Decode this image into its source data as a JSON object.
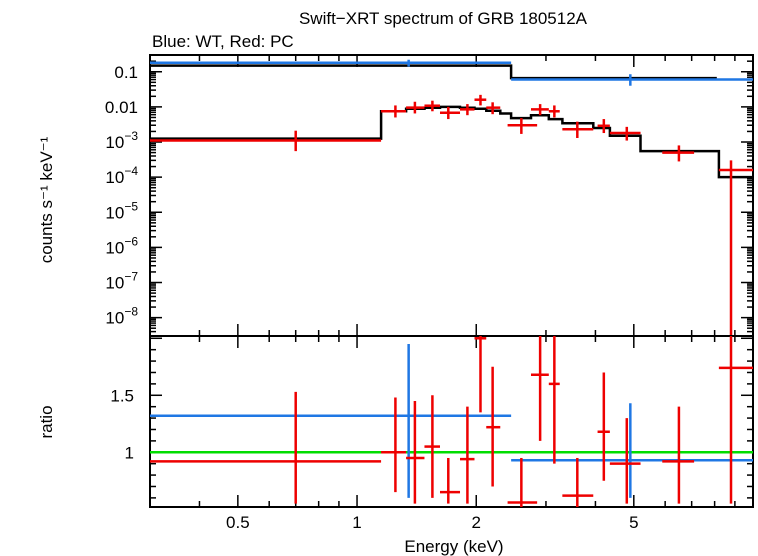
{
  "title": "Swift−XRT spectrum of GRB 180512A",
  "subtitle": "Blue: WT, Red: PC",
  "xlabel": "Energy (keV)",
  "colors": {
    "wt": "#1f77e4",
    "pc": "#ee0000",
    "model": "#000000",
    "unity": "#00dd00",
    "axes": "#000000"
  },
  "chart_data": [
    {
      "type": "scatter",
      "panel": "spectrum",
      "ylabel": "counts s⁻¹ keV⁻¹",
      "xscale": "log",
      "yscale": "log",
      "xlim": [
        0.3,
        10
      ],
      "ylim": [
        3e-09,
        0.3
      ],
      "x_ticks": [
        0.5,
        1,
        2,
        5
      ],
      "y_ticks": [
        {
          "v": 1e-08,
          "base": "10",
          "exp": "−8"
        },
        {
          "v": 1e-07,
          "base": "10",
          "exp": "−7"
        },
        {
          "v": 1e-06,
          "base": "10",
          "exp": "−6"
        },
        {
          "v": 1e-05,
          "base": "10",
          "exp": "−5"
        },
        {
          "v": 0.0001,
          "base": "10",
          "exp": "−4"
        },
        {
          "v": 0.001,
          "base": "10",
          "exp": "−3"
        },
        {
          "v": 0.01,
          "base": "0.01",
          "exp": ""
        },
        {
          "v": 0.1,
          "base": "0.1",
          "exp": ""
        }
      ],
      "series": [
        {
          "key": "wt",
          "points": [
            {
              "x": 1.35,
              "xl": 0.3,
              "xh": 2.45,
              "y": 0.18,
              "yl": 0.14,
              "yh": 0.22
            },
            {
              "x": 4.9,
              "xl": 2.45,
              "xh": 10,
              "y": 0.06,
              "yl": 0.04,
              "yh": 0.085
            }
          ]
        },
        {
          "key": "pc",
          "points": [
            {
              "x": 0.7,
              "xl": 0.3,
              "xh": 1.15,
              "y": 0.0011,
              "yl": 0.00055,
              "yh": 0.0021
            },
            {
              "x": 1.25,
              "xl": 1.15,
              "xh": 1.33,
              "y": 0.0075,
              "yl": 0.005,
              "yh": 0.011
            },
            {
              "x": 1.4,
              "xl": 1.33,
              "xh": 1.48,
              "y": 0.0095,
              "yl": 0.0065,
              "yh": 0.014
            },
            {
              "x": 1.55,
              "xl": 1.48,
              "xh": 1.62,
              "y": 0.0108,
              "yl": 0.0075,
              "yh": 0.015
            },
            {
              "x": 1.7,
              "xl": 1.62,
              "xh": 1.82,
              "y": 0.0068,
              "yl": 0.0045,
              "yh": 0.01
            },
            {
              "x": 1.9,
              "xl": 1.82,
              "xh": 1.98,
              "y": 0.0085,
              "yl": 0.0058,
              "yh": 0.012
            },
            {
              "x": 2.05,
              "xl": 1.98,
              "xh": 2.12,
              "y": 0.016,
              "yl": 0.011,
              "yh": 0.022
            },
            {
              "x": 2.2,
              "xl": 2.12,
              "xh": 2.3,
              "y": 0.0095,
              "yl": 0.0062,
              "yh": 0.0135
            },
            {
              "x": 2.6,
              "xl": 2.4,
              "xh": 2.85,
              "y": 0.003,
              "yl": 0.0017,
              "yh": 0.0048
            },
            {
              "x": 2.9,
              "xl": 2.75,
              "xh": 3.05,
              "y": 0.0085,
              "yl": 0.0058,
              "yh": 0.012
            },
            {
              "x": 3.15,
              "xl": 3.05,
              "xh": 3.25,
              "y": 0.0075,
              "yl": 0.005,
              "yh": 0.011
            },
            {
              "x": 3.6,
              "xl": 3.3,
              "xh": 3.95,
              "y": 0.0023,
              "yl": 0.0013,
              "yh": 0.0038
            },
            {
              "x": 4.2,
              "xl": 4.05,
              "xh": 4.35,
              "y": 0.0029,
              "yl": 0.0018,
              "yh": 0.0045
            },
            {
              "x": 4.8,
              "xl": 4.35,
              "xh": 5.2,
              "y": 0.0018,
              "yl": 0.0011,
              "yh": 0.0027
            },
            {
              "x": 6.5,
              "xl": 5.9,
              "xh": 7.1,
              "y": 0.0005,
              "yl": 0.00028,
              "yh": 0.0008
            },
            {
              "x": 8.8,
              "xl": 8.2,
              "xh": 10,
              "y": 0.00016,
              "yl": 3e-09,
              "yh": 0.0003
            }
          ]
        }
      ],
      "models": [
        {
          "key": "model",
          "steps": [
            {
              "x0": 0.3,
              "x1": 2.45,
              "y": 0.15
            },
            {
              "x0": 2.45,
              "x1": 8.1,
              "y": 0.066
            }
          ]
        },
        {
          "key": "model",
          "steps": [
            {
              "x0": 0.3,
              "x1": 1.15,
              "y": 0.00125
            },
            {
              "x0": 1.15,
              "x1": 1.33,
              "y": 0.0075
            },
            {
              "x0": 1.33,
              "x1": 1.48,
              "y": 0.0088
            },
            {
              "x0": 1.48,
              "x1": 1.62,
              "y": 0.0095
            },
            {
              "x0": 1.62,
              "x1": 1.82,
              "y": 0.01
            },
            {
              "x0": 1.82,
              "x1": 1.98,
              "y": 0.0095
            },
            {
              "x0": 1.98,
              "x1": 2.12,
              "y": 0.0088
            },
            {
              "x0": 2.12,
              "x1": 2.3,
              "y": 0.0078
            },
            {
              "x0": 2.3,
              "x1": 2.45,
              "y": 0.0065
            },
            {
              "x0": 2.45,
              "x1": 2.75,
              "y": 0.0048
            },
            {
              "x0": 2.75,
              "x1": 3.05,
              "y": 0.0058
            },
            {
              "x0": 3.05,
              "x1": 3.3,
              "y": 0.0045
            },
            {
              "x0": 3.3,
              "x1": 3.95,
              "y": 0.0034
            },
            {
              "x0": 3.95,
              "x1": 4.35,
              "y": 0.0025
            },
            {
              "x0": 4.35,
              "x1": 5.2,
              "y": 0.0015
            },
            {
              "x0": 5.2,
              "x1": 7.1,
              "y": 0.00055
            },
            {
              "x0": 7.1,
              "x1": 8.2,
              "y": 0.00055
            },
            {
              "x0": 8.2,
              "x1": 10,
              "y": 0.0001
            }
          ]
        }
      ]
    },
    {
      "type": "scatter",
      "panel": "ratio",
      "ylabel": "ratio",
      "xscale": "log",
      "yscale": "linear",
      "xlim": [
        0.3,
        10
      ],
      "ylim": [
        0.52,
        2.02
      ],
      "x_ticks": [
        0.5,
        1,
        2,
        5
      ],
      "y_ticks": [
        {
          "v": 1,
          "label": "1"
        },
        {
          "v": 1.5,
          "label": "1.5"
        }
      ],
      "unity_line": 1,
      "series": [
        {
          "key": "wt",
          "points": [
            {
              "x": 1.35,
              "xl": 0.3,
              "xh": 2.45,
              "y": 1.32,
              "yl": 0.6,
              "yh": 1.95
            },
            {
              "x": 4.9,
              "xl": 2.45,
              "xh": 10,
              "y": 0.93,
              "yl": 0.6,
              "yh": 1.43
            }
          ]
        },
        {
          "key": "pc",
          "points": [
            {
              "x": 0.7,
              "xl": 0.3,
              "xh": 1.15,
              "y": 0.92,
              "yl": 0.55,
              "yh": 1.53
            },
            {
              "x": 1.25,
              "xl": 1.15,
              "xh": 1.33,
              "y": 1.0,
              "yl": 0.65,
              "yh": 1.48
            },
            {
              "x": 1.4,
              "xl": 1.33,
              "xh": 1.48,
              "y": 0.95,
              "yl": 0.55,
              "yh": 1.45
            },
            {
              "x": 1.55,
              "xl": 1.48,
              "xh": 1.62,
              "y": 1.05,
              "yl": 0.6,
              "yh": 1.5
            },
            {
              "x": 1.7,
              "xl": 1.62,
              "xh": 1.82,
              "y": 0.65,
              "yl": 0.55,
              "yh": 0.95
            },
            {
              "x": 1.9,
              "xl": 1.82,
              "xh": 1.98,
              "y": 0.94,
              "yl": 0.55,
              "yh": 1.4
            },
            {
              "x": 2.05,
              "xl": 1.98,
              "xh": 2.12,
              "y": 2.0,
              "yl": 1.35,
              "yh": 2.02
            },
            {
              "x": 2.2,
              "xl": 2.12,
              "xh": 2.3,
              "y": 1.22,
              "yl": 0.7,
              "yh": 1.75
            },
            {
              "x": 2.6,
              "xl": 2.4,
              "xh": 2.85,
              "y": 0.56,
              "yl": 0.52,
              "yh": 0.95
            },
            {
              "x": 2.9,
              "xl": 2.75,
              "xh": 3.05,
              "y": 1.68,
              "yl": 1.1,
              "yh": 2.02
            },
            {
              "x": 3.15,
              "xl": 3.05,
              "xh": 3.25,
              "y": 1.6,
              "yl": 0.9,
              "yh": 2.02
            },
            {
              "x": 3.6,
              "xl": 3.3,
              "xh": 3.95,
              "y": 0.62,
              "yl": 0.52,
              "yh": 0.95
            },
            {
              "x": 4.2,
              "xl": 4.05,
              "xh": 4.35,
              "y": 1.18,
              "yl": 0.75,
              "yh": 1.7
            },
            {
              "x": 4.8,
              "xl": 4.35,
              "xh": 5.2,
              "y": 0.9,
              "yl": 0.55,
              "yh": 1.3
            },
            {
              "x": 6.5,
              "xl": 5.9,
              "xh": 7.1,
              "y": 0.92,
              "yl": 0.55,
              "yh": 1.4
            },
            {
              "x": 8.8,
              "xl": 8.2,
              "xh": 10,
              "y": 1.74,
              "yl": 0.55,
              "yh": 2.02
            }
          ]
        }
      ]
    }
  ]
}
